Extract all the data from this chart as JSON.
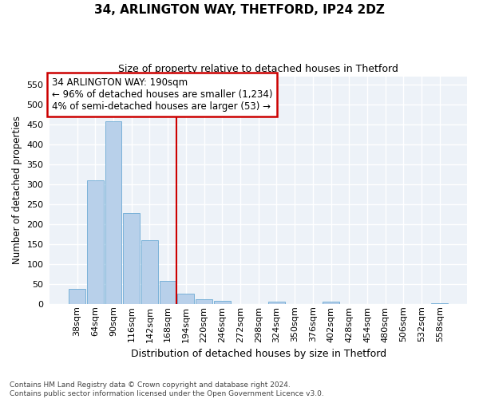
{
  "title": "34, ARLINGTON WAY, THETFORD, IP24 2DZ",
  "subtitle": "Size of property relative to detached houses in Thetford",
  "xlabel": "Distribution of detached houses by size in Thetford",
  "ylabel": "Number of detached properties",
  "bar_color": "#b8d0ea",
  "bar_edge_color": "#6aaad4",
  "vline_color": "#cc0000",
  "vline_bin": 6,
  "annotation_text": "34 ARLINGTON WAY: 190sqm\n← 96% of detached houses are smaller (1,234)\n4% of semi-detached houses are larger (53) →",
  "footnote": "Contains HM Land Registry data © Crown copyright and database right 2024.\nContains public sector information licensed under the Open Government Licence v3.0.",
  "categories": [
    "38sqm",
    "64sqm",
    "90sqm",
    "116sqm",
    "142sqm",
    "168sqm",
    "194sqm",
    "220sqm",
    "246sqm",
    "272sqm",
    "298sqm",
    "324sqm",
    "350sqm",
    "376sqm",
    "402sqm",
    "428sqm",
    "454sqm",
    "480sqm",
    "506sqm",
    "532sqm",
    "558sqm"
  ],
  "values": [
    38,
    310,
    458,
    228,
    160,
    57,
    25,
    11,
    7,
    0,
    0,
    5,
    0,
    0,
    5,
    0,
    0,
    0,
    0,
    0,
    2
  ],
  "ylim": [
    0,
    570
  ],
  "yticks": [
    0,
    50,
    100,
    150,
    200,
    250,
    300,
    350,
    400,
    450,
    500,
    550
  ],
  "bg_color": "#edf2f8",
  "fig_bg": "#ffffff",
  "grid_color": "#ffffff"
}
